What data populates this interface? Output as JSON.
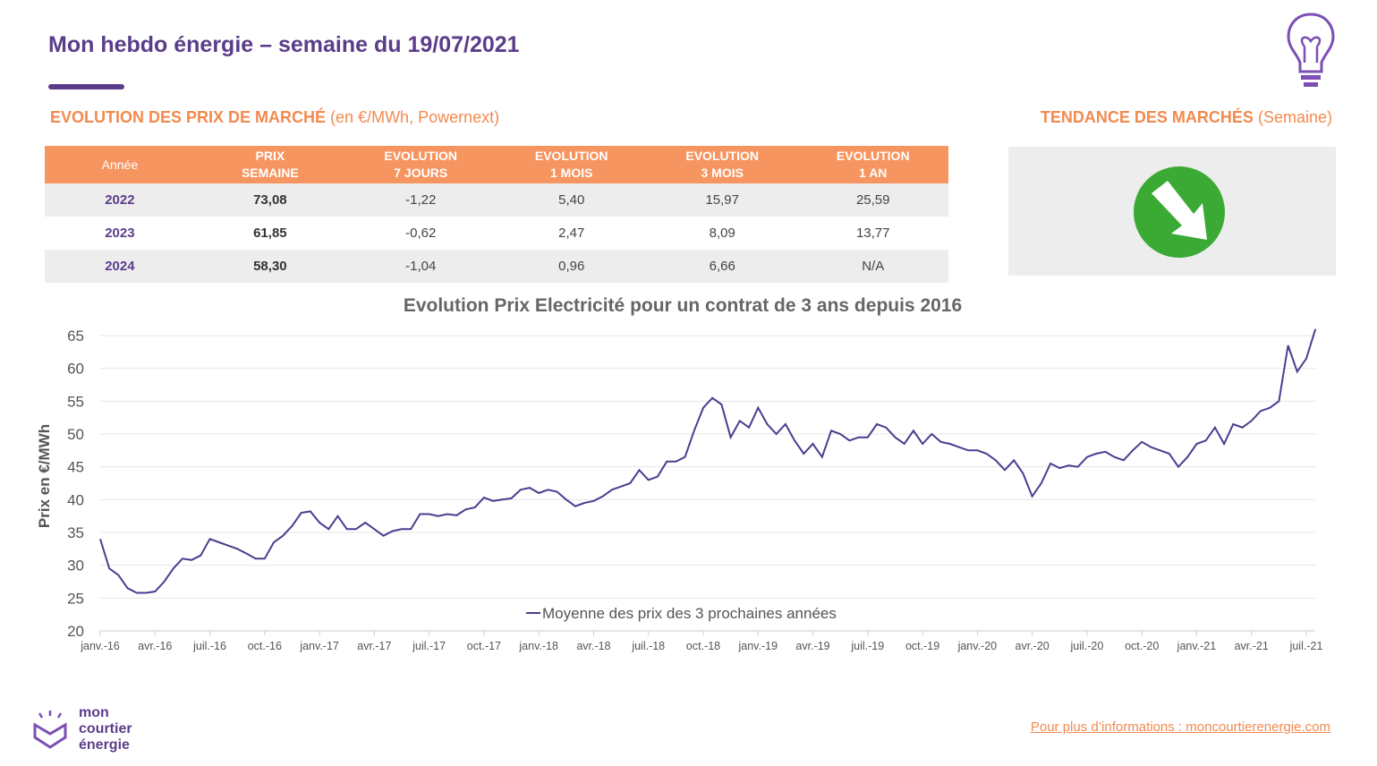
{
  "header": {
    "title": "Mon hebdo énergie – semaine du 19/07/2021",
    "link": "Pour plus d’informations : moncourtierenergie.com"
  },
  "section_left": {
    "title": "EVOLUTION DES PRIX DE MARCHÉ",
    "subtitle": "(en €/MWh, Powernext)"
  },
  "section_right": {
    "title": "TENDANCE DES MARCHÉS",
    "subtitle": "(Semaine)"
  },
  "table": {
    "header": [
      "Année",
      "PRIX\nSEMAINE",
      "EVOLUTION\n7 JOURS",
      "EVOLUTION\n1 MOIS",
      "EVOLUTION\n3 MOIS",
      "EVOLUTION\n1 AN"
    ],
    "rows": [
      [
        "2022",
        "73,08",
        "-1,22",
        "5,40",
        "15,97",
        "25,59"
      ],
      [
        "2023",
        "61,85",
        "-0,62",
        "2,47",
        "8,09",
        "13,77"
      ],
      [
        "2024",
        "58,30",
        "-1,04",
        "0,96",
        "6,66",
        "N/A"
      ]
    ]
  },
  "logo": {
    "lines": [
      "mon",
      "courtier",
      "énergie"
    ]
  },
  "chart_data": {
    "type": "line",
    "title": "Evolution Prix Electricité pour un contrat de 3 ans depuis 2016",
    "y_label": "Prix en €/MWh",
    "categories": [
      "janv.-16",
      null,
      null,
      null,
      null,
      null,
      "avr.-16",
      null,
      null,
      null,
      null,
      null,
      "juil.-16",
      null,
      null,
      null,
      null,
      null,
      "oct.-16",
      null,
      null,
      null,
      null,
      null,
      "janv.-17",
      null,
      null,
      null,
      null,
      null,
      "avr.-17",
      null,
      null,
      null,
      null,
      null,
      "juil.-17",
      null,
      null,
      null,
      null,
      null,
      "oct.-17",
      null,
      null,
      null,
      null,
      null,
      "janv.-18",
      null,
      null,
      null,
      null,
      null,
      "avr.-18",
      null,
      null,
      null,
      null,
      null,
      "juil.-18",
      null,
      null,
      null,
      null,
      null,
      "oct.-18",
      null,
      null,
      null,
      null,
      null,
      "janv.-19",
      null,
      null,
      null,
      null,
      null,
      "avr.-19",
      null,
      null,
      null,
      null,
      null,
      "juil.-19",
      null,
      null,
      null,
      null,
      null,
      "oct.-19",
      null,
      null,
      null,
      null,
      null,
      "janv.-20",
      null,
      null,
      null,
      null,
      null,
      "avr.-20",
      null,
      null,
      null,
      null,
      null,
      "juil.-20",
      null,
      null,
      null,
      null,
      null,
      "oct.-20",
      null,
      null,
      null,
      null,
      null,
      "janv.-21",
      null,
      null,
      null,
      null,
      null,
      "avr.-21",
      null,
      null,
      null,
      null,
      null,
      "juil.-21",
      null
    ],
    "series": [
      {
        "name": "Moyenne des prix des 3 prochaines années",
        "color": "#4b3d8f",
        "values": [
          34,
          29.5,
          28.5,
          26.5,
          25.8,
          25.8,
          26,
          27.5,
          29.5,
          31,
          30.8,
          31.5,
          34,
          33.5,
          33,
          32.5,
          31.8,
          31,
          31,
          33.5,
          34.5,
          36,
          38,
          38.2,
          36.5,
          35.5,
          37.5,
          35.5,
          35.5,
          36.5,
          35.5,
          34.5,
          35.2,
          35.5,
          35.5,
          37.8,
          37.8,
          37.5,
          37.8,
          37.6,
          38.5,
          38.8,
          40.3,
          39.8,
          40,
          40.2,
          41.5,
          41.8,
          41,
          41.5,
          41.2,
          40,
          39,
          39.5,
          39.8,
          40.5,
          41.5,
          42,
          42.5,
          44.5,
          43,
          43.5,
          45.8,
          45.8,
          46.5,
          50.5,
          54,
          55.5,
          54.5,
          49.5,
          52,
          51,
          54,
          51.5,
          50,
          51.5,
          49,
          47,
          48.5,
          46.5,
          50.5,
          50,
          49,
          49.5,
          49.5,
          51.5,
          51,
          49.5,
          48.5,
          50.5,
          48.5,
          50,
          48.8,
          48.5,
          48,
          47.5,
          47.5,
          47,
          46,
          44.5,
          46,
          44,
          40.5,
          42.5,
          45.5,
          44.8,
          45.2,
          45,
          46.5,
          47,
          47.3,
          46.5,
          46,
          47.5,
          48.8,
          48,
          47.5,
          47,
          45,
          46.5,
          48.5,
          49,
          51,
          48.5,
          51.5,
          51,
          52,
          53.5,
          54,
          55,
          63.5,
          59.5,
          61.5,
          66
        ]
      }
    ],
    "ylim": [
      20,
      65
    ],
    "yticks": [
      20,
      25,
      30,
      35,
      40,
      45,
      50,
      55,
      60,
      65
    ],
    "grid": true,
    "legend": "bottom"
  }
}
